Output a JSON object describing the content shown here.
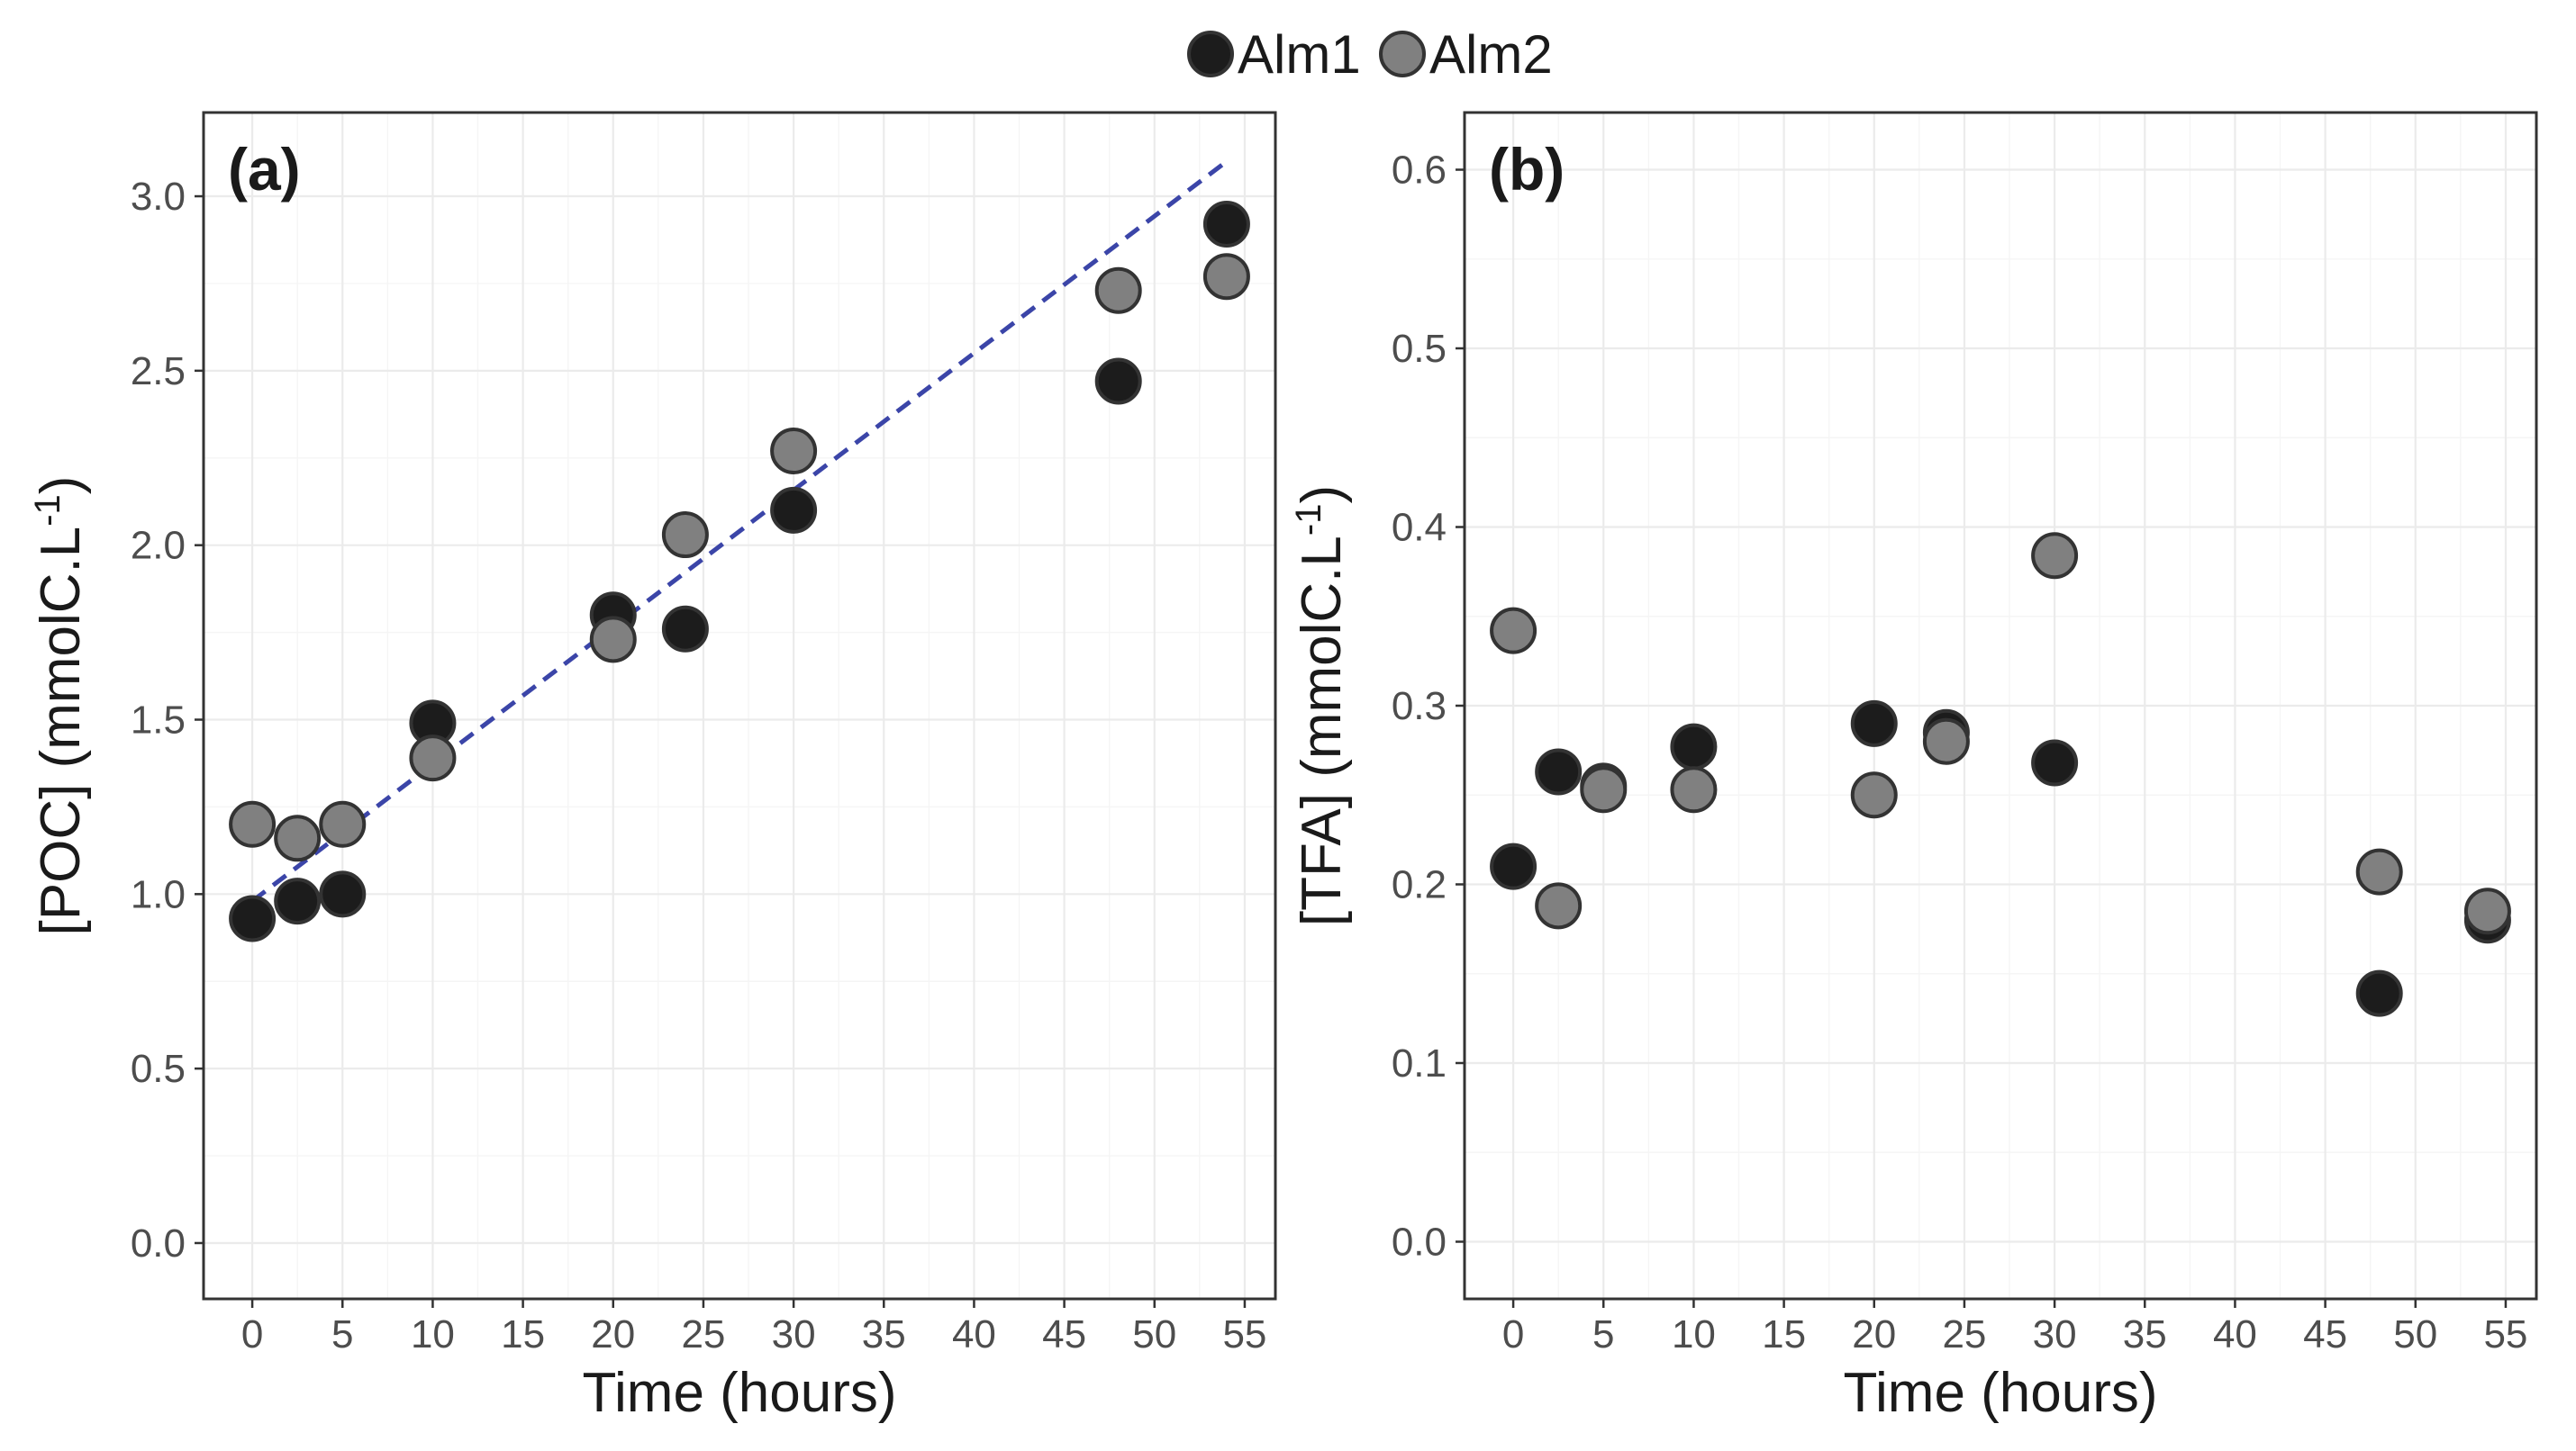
{
  "colors": {
    "alm1": "#1c1c1c",
    "alm2": "#808080",
    "fit_line": "#3b45a8"
  },
  "legend": {
    "entries": [
      {
        "label": "Alm1",
        "color_key": "alm1"
      },
      {
        "label": "Alm2",
        "color_key": "alm2"
      }
    ]
  },
  "chart_data": [
    {
      "type": "scatter",
      "panel_label": "(a)",
      "xlabel": "Time (hours)",
      "ylabel_main": "[POC] (mmolC.L",
      "ylabel_sup": "-1",
      "ylabel_end": ")",
      "xlim": [
        -2.7,
        56.7
      ],
      "ylim": [
        -0.16,
        3.24
      ],
      "xticks": [
        0,
        5,
        10,
        15,
        20,
        25,
        30,
        35,
        40,
        45,
        50,
        55
      ],
      "xtick_labels": [
        "0",
        "5",
        "10",
        "15",
        "20",
        "25",
        "30",
        "35",
        "40",
        "45",
        "50",
        "55"
      ],
      "yticks": [
        0,
        0.5,
        1,
        1.5,
        2,
        2.5,
        3
      ],
      "ytick_labels": [
        "0.0",
        "0.5",
        "1.0",
        "1.5",
        "2.0",
        "2.5",
        "3.0"
      ],
      "grid": true,
      "series": [
        {
          "name": "Alm1",
          "color_key": "alm1",
          "x": [
            0,
            2.5,
            5,
            10,
            20,
            24,
            30,
            48,
            54
          ],
          "y": [
            0.93,
            0.98,
            1.0,
            1.49,
            1.8,
            1.76,
            2.1,
            2.47,
            2.92
          ]
        },
        {
          "name": "Alm2",
          "color_key": "alm2",
          "x": [
            0,
            2.5,
            5,
            10,
            20,
            24,
            30,
            48,
            54
          ],
          "y": [
            1.2,
            1.16,
            1.2,
            1.39,
            1.73,
            2.03,
            2.27,
            2.73,
            2.77
          ]
        }
      ],
      "fit_line": {
        "x": [
          0,
          54
        ],
        "y": [
          0.98,
          3.1
        ],
        "style": "dashed"
      }
    },
    {
      "type": "scatter",
      "panel_label": "(b)",
      "xlabel": "Time (hours)",
      "ylabel_main": "[TFA] (mmolC.L",
      "ylabel_sup": "-1",
      "ylabel_end": ")",
      "xlim": [
        -2.7,
        56.7
      ],
      "ylim": [
        -0.032,
        0.632
      ],
      "xticks": [
        0,
        5,
        10,
        15,
        20,
        25,
        30,
        35,
        40,
        45,
        50,
        55
      ],
      "xtick_labels": [
        "0",
        "5",
        "10",
        "15",
        "20",
        "25",
        "30",
        "35",
        "40",
        "45",
        "50",
        "55"
      ],
      "yticks": [
        0,
        0.1,
        0.2,
        0.3,
        0.4,
        0.5,
        0.6
      ],
      "ytick_labels": [
        "0.0",
        "0.1",
        "0.2",
        "0.3",
        "0.4",
        "0.5",
        "0.6"
      ],
      "grid": true,
      "series": [
        {
          "name": "Alm1",
          "color_key": "alm1",
          "x": [
            0,
            2.5,
            5,
            10,
            20,
            24,
            30,
            48,
            54
          ],
          "y": [
            0.21,
            0.263,
            0.255,
            0.277,
            0.29,
            0.285,
            0.268,
            0.139,
            0.18
          ]
        },
        {
          "name": "Alm2",
          "color_key": "alm2",
          "x": [
            0,
            2.5,
            5,
            10,
            20,
            24,
            30,
            48,
            54
          ],
          "y": [
            0.342,
            0.188,
            0.253,
            0.253,
            0.25,
            0.28,
            0.384,
            0.207,
            0.185
          ]
        }
      ]
    }
  ]
}
